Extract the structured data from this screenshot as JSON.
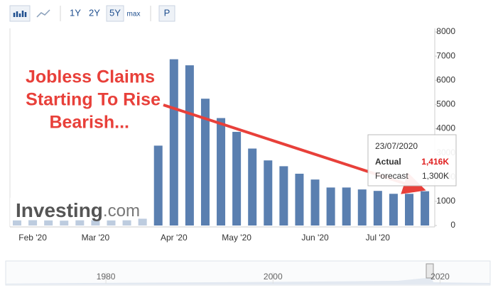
{
  "toolbar": {
    "ranges": [
      "1Y",
      "2Y",
      "5Y",
      "max"
    ],
    "print": "P"
  },
  "chart_data": {
    "type": "bar",
    "categories": [
      null,
      "Feb '20",
      null,
      null,
      null,
      "Mar '20",
      null,
      null,
      null,
      null,
      "Apr '20",
      null,
      null,
      null,
      "May '20",
      null,
      null,
      null,
      null,
      "Jun '20",
      null,
      null,
      null,
      "Jul '20",
      null,
      null,
      null
    ],
    "values": [
      210,
      220,
      210,
      200,
      215,
      220,
      210,
      215,
      280,
      3300,
      6870,
      6620,
      5240,
      4440,
      3870,
      3180,
      2690,
      2450,
      2140,
      1900,
      1570,
      1570,
      1490,
      1430,
      1310,
      1310,
      1416
    ],
    "color": "#5a7fb0",
    "ylim": [
      0,
      8000
    ],
    "yticks": [
      0,
      1000,
      2000,
      3000,
      4000,
      5000,
      6000,
      7000,
      8000
    ],
    "annotation": [
      "Jobless Claims",
      "Starting To Rise",
      "Bearish..."
    ],
    "tooltip": {
      "date": "23/07/2020",
      "actual_label": "Actual",
      "actual": "1,416K",
      "forecast_label": "Forecast",
      "forecast": "1,300K"
    },
    "logo": {
      "name": "Investing",
      "suffix": ".com"
    }
  },
  "navigator": {
    "xlim": [
      1968,
      2026
    ],
    "xticks": [
      1980,
      2000,
      2020
    ]
  }
}
